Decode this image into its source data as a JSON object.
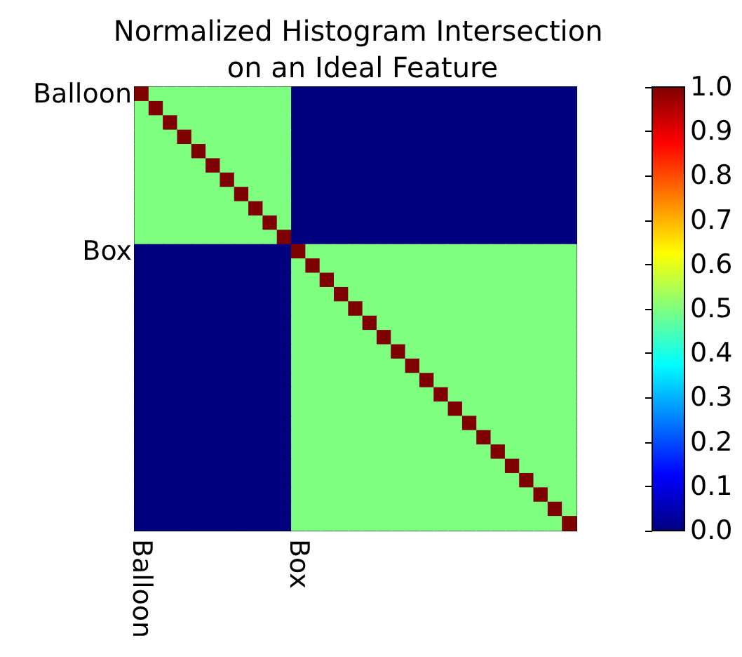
{
  "chart_data": {
    "type": "heatmap",
    "title": "Normalized Histogram Intersection on an Ideal Feature",
    "categories": [
      "Balloon",
      null,
      null,
      null,
      null,
      null,
      null,
      null,
      null,
      null,
      null,
      "Box",
      null,
      null,
      null,
      null,
      null,
      null,
      null,
      null,
      null,
      null,
      null,
      null,
      null,
      null,
      null,
      null,
      null,
      null,
      null
    ],
    "y_categories": [
      "Balloon",
      null,
      null,
      null,
      null,
      null,
      null,
      null,
      null,
      null,
      null,
      "Box",
      null,
      null,
      null,
      null,
      null,
      null,
      null,
      null,
      null,
      null,
      null,
      null,
      null,
      null,
      null,
      null,
      null,
      null,
      null
    ],
    "cells": [
      [
        1,
        0.5,
        0.5,
        0.5,
        0.5,
        0.5,
        0.5,
        0.5,
        0.5,
        0.5,
        0.5,
        0,
        0,
        0,
        0,
        0,
        0,
        0,
        0,
        0,
        0,
        0,
        0,
        0,
        0,
        0,
        0,
        0,
        0,
        0,
        0
      ],
      [
        0.5,
        1,
        0.5,
        0.5,
        0.5,
        0.5,
        0.5,
        0.5,
        0.5,
        0.5,
        0.5,
        0,
        0,
        0,
        0,
        0,
        0,
        0,
        0,
        0,
        0,
        0,
        0,
        0,
        0,
        0,
        0,
        0,
        0,
        0,
        0
      ],
      [
        0.5,
        0.5,
        1,
        0.5,
        0.5,
        0.5,
        0.5,
        0.5,
        0.5,
        0.5,
        0.5,
        0,
        0,
        0,
        0,
        0,
        0,
        0,
        0,
        0,
        0,
        0,
        0,
        0,
        0,
        0,
        0,
        0,
        0,
        0,
        0
      ],
      [
        0.5,
        0.5,
        0.5,
        1,
        0.5,
        0.5,
        0.5,
        0.5,
        0.5,
        0.5,
        0.5,
        0,
        0,
        0,
        0,
        0,
        0,
        0,
        0,
        0,
        0,
        0,
        0,
        0,
        0,
        0,
        0,
        0,
        0,
        0,
        0
      ],
      [
        0.5,
        0.5,
        0.5,
        0.5,
        1,
        0.5,
        0.5,
        0.5,
        0.5,
        0.5,
        0.5,
        0,
        0,
        0,
        0,
        0,
        0,
        0,
        0,
        0,
        0,
        0,
        0,
        0,
        0,
        0,
        0,
        0,
        0,
        0,
        0
      ],
      [
        0.5,
        0.5,
        0.5,
        0.5,
        0.5,
        1,
        0.5,
        0.5,
        0.5,
        0.5,
        0.5,
        0,
        0,
        0,
        0,
        0,
        0,
        0,
        0,
        0,
        0,
        0,
        0,
        0,
        0,
        0,
        0,
        0,
        0,
        0,
        0
      ],
      [
        0.5,
        0.5,
        0.5,
        0.5,
        0.5,
        0.5,
        1,
        0.5,
        0.5,
        0.5,
        0.5,
        0,
        0,
        0,
        0,
        0,
        0,
        0,
        0,
        0,
        0,
        0,
        0,
        0,
        0,
        0,
        0,
        0,
        0,
        0,
        0
      ],
      [
        0.5,
        0.5,
        0.5,
        0.5,
        0.5,
        0.5,
        0.5,
        1,
        0.5,
        0.5,
        0.5,
        0,
        0,
        0,
        0,
        0,
        0,
        0,
        0,
        0,
        0,
        0,
        0,
        0,
        0,
        0,
        0,
        0,
        0,
        0,
        0
      ],
      [
        0.5,
        0.5,
        0.5,
        0.5,
        0.5,
        0.5,
        0.5,
        0.5,
        1,
        0.5,
        0.5,
        0,
        0,
        0,
        0,
        0,
        0,
        0,
        0,
        0,
        0,
        0,
        0,
        0,
        0,
        0,
        0,
        0,
        0,
        0,
        0
      ],
      [
        0.5,
        0.5,
        0.5,
        0.5,
        0.5,
        0.5,
        0.5,
        0.5,
        0.5,
        1,
        0.5,
        0,
        0,
        0,
        0,
        0,
        0,
        0,
        0,
        0,
        0,
        0,
        0,
        0,
        0,
        0,
        0,
        0,
        0,
        0,
        0
      ],
      [
        0.5,
        0.5,
        0.5,
        0.5,
        0.5,
        0.5,
        0.5,
        0.5,
        0.5,
        0.5,
        1,
        0,
        0,
        0,
        0,
        0,
        0,
        0,
        0,
        0,
        0,
        0,
        0,
        0,
        0,
        0,
        0,
        0,
        0,
        0,
        0
      ],
      [
        0,
        0,
        0,
        0,
        0,
        0,
        0,
        0,
        0,
        0,
        0,
        1,
        0.5,
        0.5,
        0.5,
        0.5,
        0.5,
        0.5,
        0.5,
        0.5,
        0.5,
        0.5,
        0.5,
        0.5,
        0.5,
        0.5,
        0.5,
        0.5,
        0.5,
        0.5,
        0.5
      ],
      [
        0,
        0,
        0,
        0,
        0,
        0,
        0,
        0,
        0,
        0,
        0,
        0.5,
        1,
        0.5,
        0.5,
        0.5,
        0.5,
        0.5,
        0.5,
        0.5,
        0.5,
        0.5,
        0.5,
        0.5,
        0.5,
        0.5,
        0.5,
        0.5,
        0.5,
        0.5,
        0.5
      ],
      [
        0,
        0,
        0,
        0,
        0,
        0,
        0,
        0,
        0,
        0,
        0,
        0.5,
        0.5,
        1,
        0.5,
        0.5,
        0.5,
        0.5,
        0.5,
        0.5,
        0.5,
        0.5,
        0.5,
        0.5,
        0.5,
        0.5,
        0.5,
        0.5,
        0.5,
        0.5,
        0.5
      ],
      [
        0,
        0,
        0,
        0,
        0,
        0,
        0,
        0,
        0,
        0,
        0,
        0.5,
        0.5,
        0.5,
        1,
        0.5,
        0.5,
        0.5,
        0.5,
        0.5,
        0.5,
        0.5,
        0.5,
        0.5,
        0.5,
        0.5,
        0.5,
        0.5,
        0.5,
        0.5,
        0.5
      ],
      [
        0,
        0,
        0,
        0,
        0,
        0,
        0,
        0,
        0,
        0,
        0,
        0.5,
        0.5,
        0.5,
        0.5,
        1,
        0.5,
        0.5,
        0.5,
        0.5,
        0.5,
        0.5,
        0.5,
        0.5,
        0.5,
        0.5,
        0.5,
        0.5,
        0.5,
        0.5,
        0.5
      ],
      [
        0,
        0,
        0,
        0,
        0,
        0,
        0,
        0,
        0,
        0,
        0,
        0.5,
        0.5,
        0.5,
        0.5,
        0.5,
        1,
        0.5,
        0.5,
        0.5,
        0.5,
        0.5,
        0.5,
        0.5,
        0.5,
        0.5,
        0.5,
        0.5,
        0.5,
        0.5,
        0.5
      ],
      [
        0,
        0,
        0,
        0,
        0,
        0,
        0,
        0,
        0,
        0,
        0,
        0.5,
        0.5,
        0.5,
        0.5,
        0.5,
        0.5,
        1,
        0.5,
        0.5,
        0.5,
        0.5,
        0.5,
        0.5,
        0.5,
        0.5,
        0.5,
        0.5,
        0.5,
        0.5,
        0.5
      ],
      [
        0,
        0,
        0,
        0,
        0,
        0,
        0,
        0,
        0,
        0,
        0,
        0.5,
        0.5,
        0.5,
        0.5,
        0.5,
        0.5,
        0.5,
        1,
        0.5,
        0.5,
        0.5,
        0.5,
        0.5,
        0.5,
        0.5,
        0.5,
        0.5,
        0.5,
        0.5,
        0.5
      ],
      [
        0,
        0,
        0,
        0,
        0,
        0,
        0,
        0,
        0,
        0,
        0,
        0.5,
        0.5,
        0.5,
        0.5,
        0.5,
        0.5,
        0.5,
        0.5,
        1,
        0.5,
        0.5,
        0.5,
        0.5,
        0.5,
        0.5,
        0.5,
        0.5,
        0.5,
        0.5,
        0.5
      ],
      [
        0,
        0,
        0,
        0,
        0,
        0,
        0,
        0,
        0,
        0,
        0,
        0.5,
        0.5,
        0.5,
        0.5,
        0.5,
        0.5,
        0.5,
        0.5,
        0.5,
        1,
        0.5,
        0.5,
        0.5,
        0.5,
        0.5,
        0.5,
        0.5,
        0.5,
        0.5,
        0.5
      ],
      [
        0,
        0,
        0,
        0,
        0,
        0,
        0,
        0,
        0,
        0,
        0,
        0.5,
        0.5,
        0.5,
        0.5,
        0.5,
        0.5,
        0.5,
        0.5,
        0.5,
        0.5,
        1,
        0.5,
        0.5,
        0.5,
        0.5,
        0.5,
        0.5,
        0.5,
        0.5,
        0.5
      ],
      [
        0,
        0,
        0,
        0,
        0,
        0,
        0,
        0,
        0,
        0,
        0,
        0.5,
        0.5,
        0.5,
        0.5,
        0.5,
        0.5,
        0.5,
        0.5,
        0.5,
        0.5,
        0.5,
        1,
        0.5,
        0.5,
        0.5,
        0.5,
        0.5,
        0.5,
        0.5,
        0.5
      ],
      [
        0,
        0,
        0,
        0,
        0,
        0,
        0,
        0,
        0,
        0,
        0,
        0.5,
        0.5,
        0.5,
        0.5,
        0.5,
        0.5,
        0.5,
        0.5,
        0.5,
        0.5,
        0.5,
        0.5,
        1,
        0.5,
        0.5,
        0.5,
        0.5,
        0.5,
        0.5,
        0.5
      ],
      [
        0,
        0,
        0,
        0,
        0,
        0,
        0,
        0,
        0,
        0,
        0,
        0.5,
        0.5,
        0.5,
        0.5,
        0.5,
        0.5,
        0.5,
        0.5,
        0.5,
        0.5,
        0.5,
        0.5,
        0.5,
        1,
        0.5,
        0.5,
        0.5,
        0.5,
        0.5,
        0.5
      ],
      [
        0,
        0,
        0,
        0,
        0,
        0,
        0,
        0,
        0,
        0,
        0,
        0.5,
        0.5,
        0.5,
        0.5,
        0.5,
        0.5,
        0.5,
        0.5,
        0.5,
        0.5,
        0.5,
        0.5,
        0.5,
        0.5,
        1,
        0.5,
        0.5,
        0.5,
        0.5,
        0.5
      ],
      [
        0,
        0,
        0,
        0,
        0,
        0,
        0,
        0,
        0,
        0,
        0,
        0.5,
        0.5,
        0.5,
        0.5,
        0.5,
        0.5,
        0.5,
        0.5,
        0.5,
        0.5,
        0.5,
        0.5,
        0.5,
        0.5,
        0.5,
        1,
        0.5,
        0.5,
        0.5,
        0.5
      ],
      [
        0,
        0,
        0,
        0,
        0,
        0,
        0,
        0,
        0,
        0,
        0,
        0.5,
        0.5,
        0.5,
        0.5,
        0.5,
        0.5,
        0.5,
        0.5,
        0.5,
        0.5,
        0.5,
        0.5,
        0.5,
        0.5,
        0.5,
        0.5,
        1,
        0.5,
        0.5,
        0.5
      ],
      [
        0,
        0,
        0,
        0,
        0,
        0,
        0,
        0,
        0,
        0,
        0,
        0.5,
        0.5,
        0.5,
        0.5,
        0.5,
        0.5,
        0.5,
        0.5,
        0.5,
        0.5,
        0.5,
        0.5,
        0.5,
        0.5,
        0.5,
        0.5,
        0.5,
        1,
        0.5,
        0.5
      ],
      [
        0,
        0,
        0,
        0,
        0,
        0,
        0,
        0,
        0,
        0,
        0,
        0.5,
        0.5,
        0.5,
        0.5,
        0.5,
        0.5,
        0.5,
        0.5,
        0.5,
        0.5,
        0.5,
        0.5,
        0.5,
        0.5,
        0.5,
        0.5,
        0.5,
        0.5,
        1,
        0.5
      ],
      [
        0,
        0,
        0,
        0,
        0,
        0,
        0,
        0,
        0,
        0,
        0,
        0.5,
        0.5,
        0.5,
        0.5,
        0.5,
        0.5,
        0.5,
        0.5,
        0.5,
        0.5,
        0.5,
        0.5,
        0.5,
        0.5,
        0.5,
        0.5,
        0.5,
        0.5,
        0.5,
        1
      ]
    ],
    "clim": [
      0,
      1
    ],
    "cticks": [
      "0.0",
      0.1,
      0.2,
      0.3,
      0.4,
      0.5,
      0.6,
      0.7,
      0.8,
      0.9,
      "1.0"
    ]
  }
}
